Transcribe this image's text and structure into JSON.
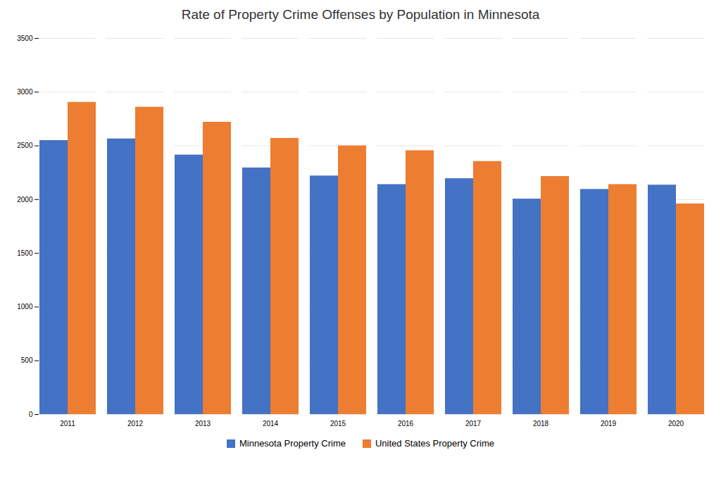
{
  "chart_data": {
    "type": "bar",
    "title": "Rate of Property Crime Offenses by Population in Minnesota",
    "categories": [
      "2011",
      "2012",
      "2013",
      "2014",
      "2015",
      "2016",
      "2017",
      "2018",
      "2019",
      "2020"
    ],
    "series": [
      {
        "name": "Minnesota Property Crime",
        "color": "#4472c4",
        "values": [
          2550,
          2565,
          2415,
          2295,
          2220,
          2140,
          2195,
          2005,
          2095,
          2135
        ]
      },
      {
        "name": "United States Property Crime",
        "color": "#ed7d31",
        "values": [
          2905,
          2860,
          2720,
          2570,
          2500,
          2455,
          2355,
          2215,
          2140,
          1960
        ]
      }
    ],
    "ylim": [
      0,
      3500
    ],
    "yticks": [
      0,
      500,
      1000,
      1500,
      2000,
      2500,
      3000,
      3500
    ],
    "grid": true,
    "legend": "bottom"
  }
}
